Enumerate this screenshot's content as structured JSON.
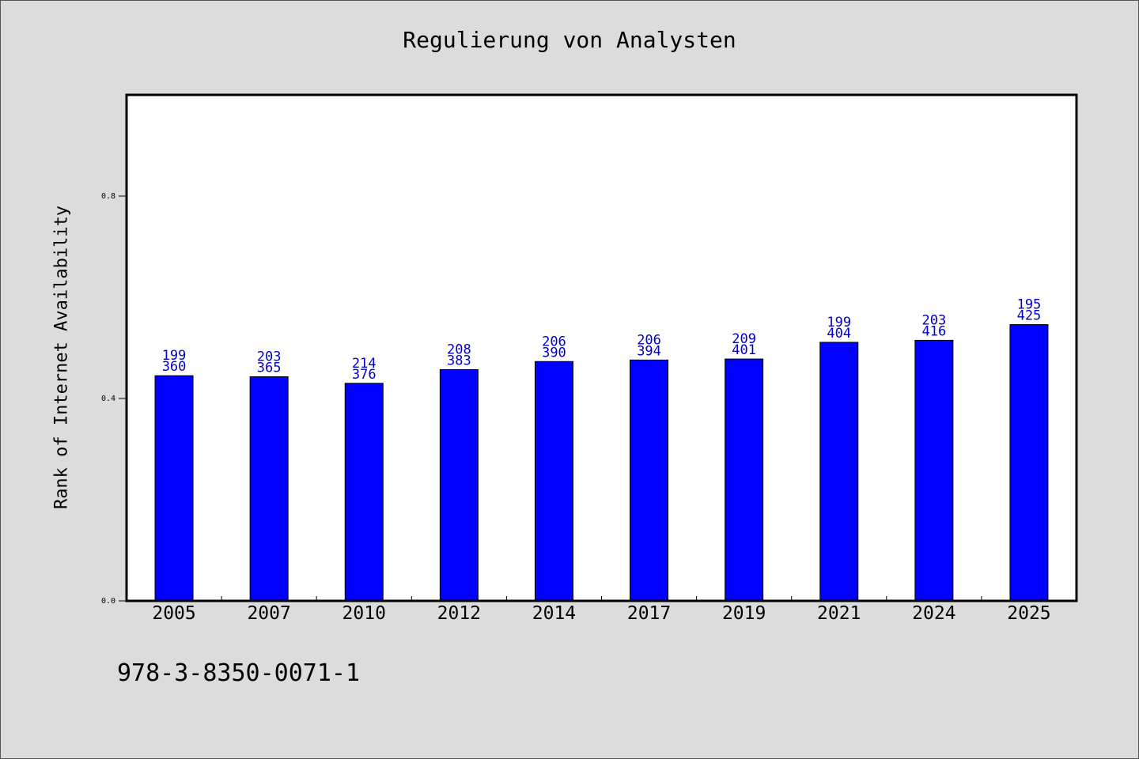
{
  "chart_data": {
    "type": "bar",
    "title": "Regulierung von Analysten",
    "xlabel": "",
    "ylabel": "Rank of Internet Availability",
    "categories": [
      "2005",
      "2007",
      "2010",
      "2012",
      "2014",
      "2017",
      "2019",
      "2021",
      "2024",
      "2025"
    ],
    "values": [
      0.445,
      0.443,
      0.43,
      0.457,
      0.473,
      0.476,
      0.478,
      0.511,
      0.515,
      0.546
    ],
    "label_top": [
      "199",
      "203",
      "214",
      "208",
      "206",
      "206",
      "209",
      "199",
      "203",
      "195"
    ],
    "label_bottom": [
      "360",
      "365",
      "376",
      "383",
      "390",
      "394",
      "401",
      "404",
      "416",
      "425"
    ],
    "yticks": [
      0.0,
      0.4,
      0.8
    ],
    "ytick_labels": [
      "0.0",
      "0.4",
      "0.8"
    ],
    "ylim": [
      0,
      1.0
    ],
    "grid": false,
    "colors": {
      "bar": "#0000ff",
      "bar_edge": "#000000",
      "label": "#0000cc",
      "background": "#dcdcdc",
      "plot_bg": "#ffffff"
    }
  },
  "footer_text": "978-3-8350-0071-1"
}
